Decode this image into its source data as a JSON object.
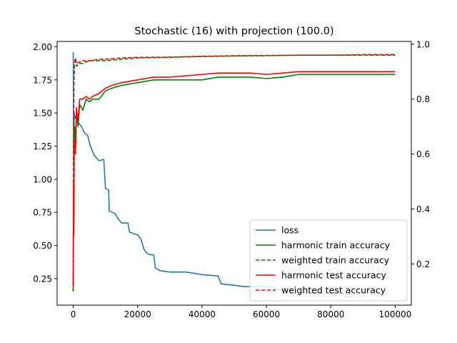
{
  "chart_data": {
    "type": "line",
    "title": "Stochastic (16) with projection (100.0)",
    "xlabel": "",
    "ylabel": "",
    "y2label": "",
    "xlim": [
      -5000,
      105000
    ],
    "ylim": [
      0.05,
      2.04
    ],
    "y2lim": [
      0.05,
      1.01
    ],
    "x_ticks": [
      0,
      20000,
      40000,
      60000,
      80000,
      100000
    ],
    "y_ticks": [
      0.25,
      0.5,
      0.75,
      1.0,
      1.25,
      1.5,
      1.75,
      2.0
    ],
    "y2_ticks": [
      0.2,
      0.4,
      0.6,
      0.8,
      1.0
    ],
    "grid": false,
    "legend_position": "lower right",
    "series": [
      {
        "name": "loss",
        "axis": "left",
        "color": "#1f77b4",
        "dash": "solid",
        "points": [
          [
            0,
            1.96
          ],
          [
            150,
            1.1
          ],
          [
            300,
            1.5
          ],
          [
            700,
            1.46
          ],
          [
            1500,
            1.43
          ],
          [
            2500,
            1.4
          ],
          [
            3500,
            1.35
          ],
          [
            4500,
            1.33
          ],
          [
            5200,
            1.26
          ],
          [
            6500,
            1.18
          ],
          [
            8000,
            1.14
          ],
          [
            9500,
            1.15
          ],
          [
            10000,
            0.93
          ],
          [
            11000,
            0.92
          ],
          [
            11200,
            0.76
          ],
          [
            13000,
            0.74
          ],
          [
            14000,
            0.7
          ],
          [
            15000,
            0.67
          ],
          [
            17000,
            0.67
          ],
          [
            17500,
            0.6
          ],
          [
            20000,
            0.58
          ],
          [
            21000,
            0.55
          ],
          [
            22000,
            0.47
          ],
          [
            23000,
            0.44
          ],
          [
            24000,
            0.43
          ],
          [
            25000,
            0.43
          ],
          [
            25500,
            0.33
          ],
          [
            27000,
            0.31
          ],
          [
            30000,
            0.3
          ],
          [
            35000,
            0.3
          ],
          [
            40000,
            0.28
          ],
          [
            45000,
            0.27
          ],
          [
            46000,
            0.21
          ],
          [
            50000,
            0.2
          ],
          [
            53000,
            0.19
          ],
          [
            60000,
            0.19
          ],
          [
            62000,
            0.18
          ],
          [
            65000,
            0.16
          ],
          [
            67000,
            0.15
          ],
          [
            70000,
            0.15
          ],
          [
            75000,
            0.14
          ],
          [
            80000,
            0.14
          ],
          [
            85000,
            0.14
          ]
        ]
      },
      {
        "name": "harmonic train accuracy",
        "axis": "right",
        "color": "#008000",
        "dash": "solid",
        "points": [
          [
            0,
            0.1
          ],
          [
            100,
            0.45
          ],
          [
            200,
            0.3
          ],
          [
            300,
            0.62
          ],
          [
            500,
            0.7
          ],
          [
            700,
            0.62
          ],
          [
            1000,
            0.75
          ],
          [
            1500,
            0.7
          ],
          [
            2000,
            0.78
          ],
          [
            3000,
            0.76
          ],
          [
            4000,
            0.8
          ],
          [
            5000,
            0.79
          ],
          [
            6000,
            0.8
          ],
          [
            8000,
            0.8
          ],
          [
            10000,
            0.83
          ],
          [
            12000,
            0.84
          ],
          [
            15000,
            0.85
          ],
          [
            20000,
            0.86
          ],
          [
            25000,
            0.87
          ],
          [
            30000,
            0.87
          ],
          [
            35000,
            0.87
          ],
          [
            40000,
            0.87
          ],
          [
            45000,
            0.88
          ],
          [
            50000,
            0.88
          ],
          [
            55000,
            0.88
          ],
          [
            60000,
            0.875
          ],
          [
            65000,
            0.88
          ],
          [
            70000,
            0.89
          ],
          [
            75000,
            0.89
          ],
          [
            80000,
            0.89
          ],
          [
            85000,
            0.89
          ],
          [
            90000,
            0.89
          ],
          [
            100000,
            0.89
          ]
        ]
      },
      {
        "name": "weighted train accuracy",
        "axis": "right",
        "color": "#008000",
        "dash": "dashed",
        "points": [
          [
            0,
            0.1
          ],
          [
            100,
            0.6
          ],
          [
            200,
            0.85
          ],
          [
            400,
            0.93
          ],
          [
            700,
            0.95
          ],
          [
            1000,
            0.92
          ],
          [
            2000,
            0.93
          ],
          [
            3000,
            0.93
          ],
          [
            5000,
            0.94
          ],
          [
            8000,
            0.94
          ],
          [
            10000,
            0.94
          ],
          [
            15000,
            0.945
          ],
          [
            20000,
            0.95
          ],
          [
            30000,
            0.952
          ],
          [
            40000,
            0.955
          ],
          [
            50000,
            0.957
          ],
          [
            60000,
            0.958
          ],
          [
            70000,
            0.96
          ],
          [
            80000,
            0.96
          ],
          [
            90000,
            0.96
          ],
          [
            100000,
            0.96
          ]
        ]
      },
      {
        "name": "harmonic test accuracy",
        "axis": "right",
        "color": "#ff0000",
        "dash": "solid",
        "points": [
          [
            0,
            0.12
          ],
          [
            100,
            0.5
          ],
          [
            200,
            0.35
          ],
          [
            300,
            0.6
          ],
          [
            500,
            0.65
          ],
          [
            700,
            0.6
          ],
          [
            1000,
            0.77
          ],
          [
            1500,
            0.72
          ],
          [
            2000,
            0.8
          ],
          [
            3000,
            0.8
          ],
          [
            4000,
            0.81
          ],
          [
            5000,
            0.8
          ],
          [
            6000,
            0.81
          ],
          [
            8000,
            0.82
          ],
          [
            10000,
            0.84
          ],
          [
            12000,
            0.85
          ],
          [
            15000,
            0.86
          ],
          [
            20000,
            0.87
          ],
          [
            25000,
            0.88
          ],
          [
            30000,
            0.88
          ],
          [
            35000,
            0.885
          ],
          [
            40000,
            0.89
          ],
          [
            45000,
            0.895
          ],
          [
            50000,
            0.895
          ],
          [
            55000,
            0.895
          ],
          [
            60000,
            0.89
          ],
          [
            65000,
            0.895
          ],
          [
            70000,
            0.9
          ],
          [
            75000,
            0.9
          ],
          [
            80000,
            0.9
          ],
          [
            90000,
            0.9
          ],
          [
            100000,
            0.9
          ]
        ]
      },
      {
        "name": "weighted test accuracy",
        "axis": "right",
        "color": "#ff0000",
        "dash": "dashed",
        "points": [
          [
            0,
            0.12
          ],
          [
            100,
            0.62
          ],
          [
            200,
            0.86
          ],
          [
            400,
            0.93
          ],
          [
            700,
            0.95
          ],
          [
            1000,
            0.93
          ],
          [
            2000,
            0.935
          ],
          [
            3000,
            0.94
          ],
          [
            5000,
            0.94
          ],
          [
            8000,
            0.945
          ],
          [
            10000,
            0.945
          ],
          [
            15000,
            0.95
          ],
          [
            20000,
            0.952
          ],
          [
            30000,
            0.953
          ],
          [
            40000,
            0.956
          ],
          [
            50000,
            0.958
          ],
          [
            60000,
            0.959
          ],
          [
            70000,
            0.96
          ],
          [
            80000,
            0.96
          ],
          [
            90000,
            0.962
          ],
          [
            100000,
            0.962
          ]
        ]
      }
    ]
  }
}
